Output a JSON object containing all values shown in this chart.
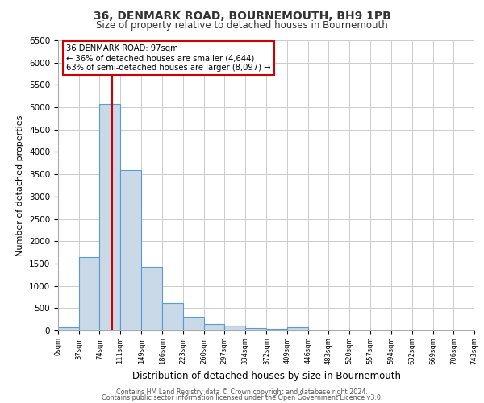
{
  "title": "36, DENMARK ROAD, BOURNEMOUTH, BH9 1PB",
  "subtitle": "Size of property relative to detached houses in Bournemouth",
  "xlabel": "Distribution of detached houses by size in Bournemouth",
  "ylabel": "Number of detached properties",
  "bin_edges": [
    0,
    37,
    74,
    111,
    149,
    186,
    223,
    260,
    297,
    334,
    372,
    409,
    446,
    483,
    520,
    557,
    594,
    632,
    669,
    706,
    743
  ],
  "bin_counts": [
    70,
    1650,
    5080,
    3600,
    1420,
    620,
    300,
    150,
    100,
    60,
    40,
    70,
    0,
    0,
    0,
    0,
    0,
    0,
    0,
    0
  ],
  "bar_facecolor": "#c9d9e8",
  "bar_edgecolor": "#5b9bd5",
  "property_line_x": 97,
  "property_line_color": "#cc0000",
  "annotation_title": "36 DENMARK ROAD: 97sqm",
  "annotation_line1": "← 36% of detached houses are smaller (4,644)",
  "annotation_line2": "63% of semi-detached houses are larger (8,097) →",
  "annotation_box_edgecolor": "#cc0000",
  "annotation_box_facecolor": "#ffffff",
  "ylim": [
    0,
    6500
  ],
  "yticks": [
    0,
    500,
    1000,
    1500,
    2000,
    2500,
    3000,
    3500,
    4000,
    4500,
    5000,
    5500,
    6000,
    6500
  ],
  "footer_line1": "Contains HM Land Registry data © Crown copyright and database right 2024.",
  "footer_line2": "Contains public sector information licensed under the Open Government Licence v3.0.",
  "bg_color": "#ffffff",
  "plot_bg_color": "#ffffff",
  "grid_color": "#cccccc"
}
